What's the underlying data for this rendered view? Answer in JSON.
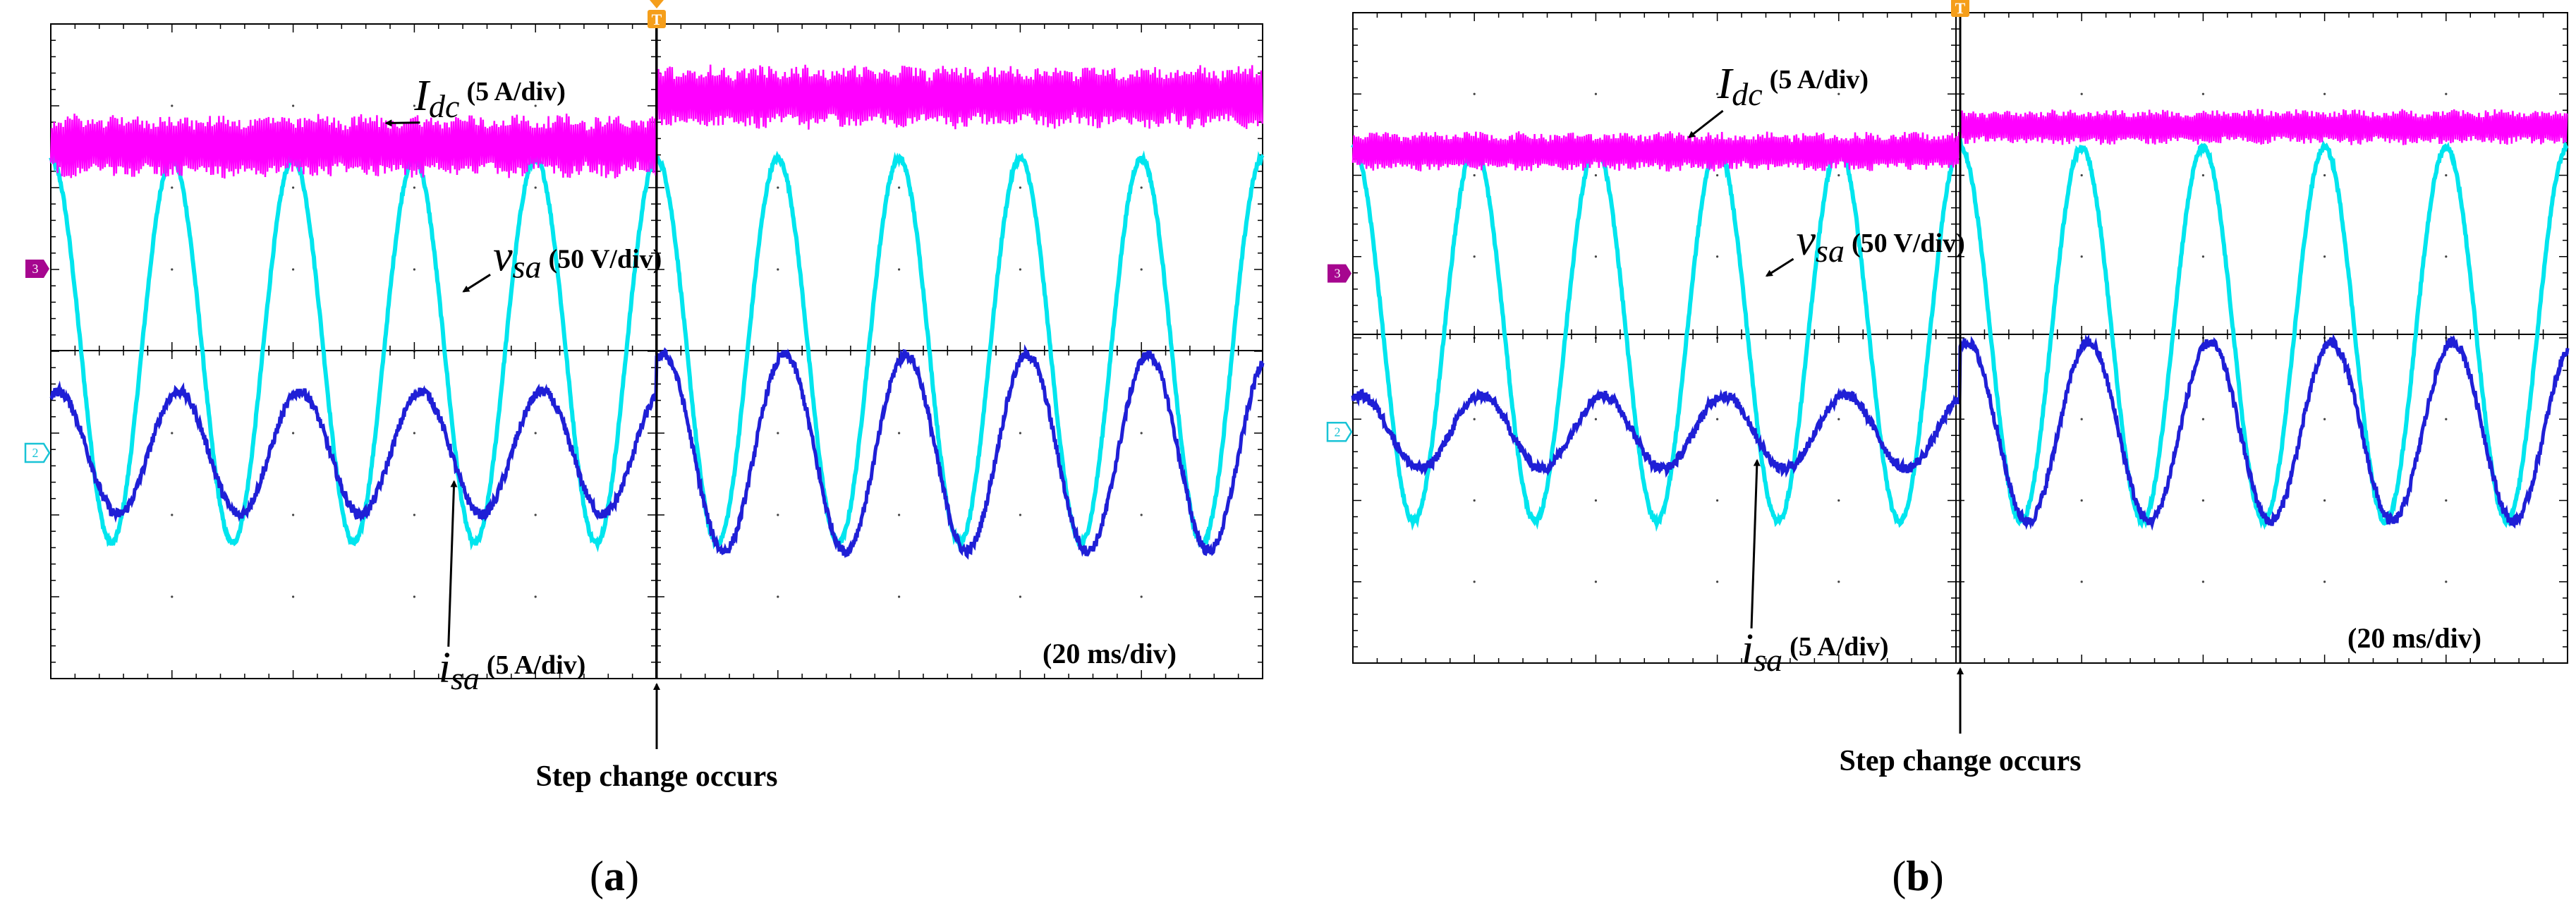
{
  "colors": {
    "idc": "#ff00ff",
    "vsa": "#00e5ee",
    "isa": "#1f1fd6",
    "grid": "#000000",
    "trigger": "#f59e1a",
    "ch3_marker": "#a6068f",
    "ch2_marker": "#19c3d6",
    "text": "#000000"
  },
  "icons": {
    "trigger_marker": "trigger-T-icon",
    "ch3_marker": "channel-3-marker-icon",
    "ch2_marker": "channel-2-marker-icon"
  },
  "panels": [
    {
      "id": "a",
      "caption_open": "(",
      "caption_letter": "a",
      "caption_close": ")",
      "trigger_symbol": "T",
      "ch3_marker_text": "3",
      "ch2_marker_text": "2",
      "idc_symbol": "I",
      "idc_sub": "dc",
      "idc_scale": "(5 A/div)",
      "vsa_symbol": "v",
      "vsa_sub": "sa",
      "vsa_scale": "(50 V/div)",
      "isa_symbol": "i",
      "isa_sub": "sa",
      "isa_scale": "(5 A/div)",
      "time_scale": "(20 ms/div)",
      "step_text": "Step change occurs"
    },
    {
      "id": "b",
      "caption_open": "(",
      "caption_letter": "b",
      "caption_close": ")",
      "trigger_symbol": "T",
      "ch3_marker_text": "3",
      "ch2_marker_text": "2",
      "idc_symbol": "I",
      "idc_sub": "dc",
      "idc_scale": "(5 A/div)",
      "vsa_symbol": "v",
      "vsa_sub": "sa",
      "vsa_scale": "(50 V/div)",
      "isa_symbol": "i",
      "isa_sub": "sa",
      "isa_scale": "(5 A/div)",
      "time_scale": "(20 ms/div)",
      "step_text": "Step change occurs"
    }
  ],
  "chart_data": [
    {
      "type": "line",
      "panel": "a",
      "x_unit": "ms",
      "x_range": [
        0,
        200
      ],
      "step_time_ms": 100,
      "series": [
        {
          "name": "Idc",
          "scale": "5 A/div",
          "before": {
            "mean_div": 2.5,
            "ripple_pp_div": 0.8
          },
          "after": {
            "mean_div": 3.1,
            "ripple_pp_div": 0.8
          }
        },
        {
          "name": "vsa",
          "scale": "50 V/div",
          "amplitude_div": 2.35,
          "frequency_hz": 50,
          "phase_deg_at_x0": 0
        },
        {
          "name": "isa",
          "scale": "5 A/div",
          "offset_div": -1.25,
          "before": {
            "amplitude_div": 0.75
          },
          "after": {
            "amplitude_div": 1.2
          },
          "frequency_hz": 50
        }
      ]
    },
    {
      "type": "line",
      "panel": "b",
      "x_unit": "ms",
      "x_range": [
        0,
        200
      ],
      "step_time_ms": 100,
      "series": [
        {
          "name": "Idc",
          "scale": "5 A/div",
          "before": {
            "mean_div": 2.25,
            "ripple_pp_div": 0.5
          },
          "after": {
            "mean_div": 2.55,
            "ripple_pp_div": 0.45
          }
        },
        {
          "name": "vsa",
          "scale": "50 V/div",
          "amplitude_div": 2.3,
          "frequency_hz": 50,
          "phase_deg_at_x0": 0
        },
        {
          "name": "isa",
          "scale": "5 A/div",
          "offset_div": -1.2,
          "before": {
            "amplitude_div": 0.45
          },
          "after": {
            "amplitude_div": 1.1
          },
          "frequency_hz": 50
        }
      ]
    }
  ]
}
